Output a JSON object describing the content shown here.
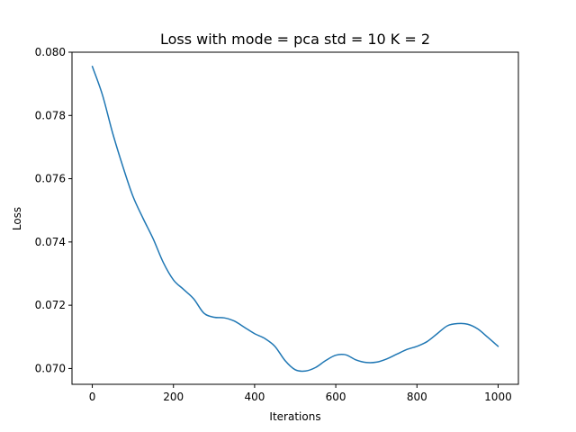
{
  "chart_data": {
    "type": "line",
    "title": "Loss with mode = pca std = 10 K = 2",
    "xlabel": "Iterations",
    "ylabel": "Loss",
    "xlim": [
      -50,
      1050
    ],
    "ylim": [
      0.0695,
      0.08
    ],
    "xticks": [
      0,
      200,
      400,
      600,
      800,
      1000
    ],
    "xtick_labels": [
      "0",
      "200",
      "400",
      "600",
      "800",
      "1000"
    ],
    "yticks": [
      0.07,
      0.072,
      0.074,
      0.076,
      0.078,
      0.08
    ],
    "ytick_labels": [
      "0.070",
      "0.072",
      "0.074",
      "0.076",
      "0.078",
      "0.080"
    ],
    "grid": false,
    "series": [
      {
        "color": "#1f77b4",
        "x": [
          0,
          25,
          50,
          75,
          100,
          125,
          150,
          175,
          200,
          225,
          250,
          275,
          300,
          325,
          350,
          375,
          400,
          425,
          450,
          475,
          500,
          525,
          550,
          575,
          600,
          625,
          650,
          675,
          700,
          725,
          750,
          775,
          800,
          825,
          850,
          875,
          900,
          925,
          950,
          975,
          1000
        ],
        "y": [
          0.07955,
          0.07865,
          0.07745,
          0.0764,
          0.07545,
          0.07475,
          0.0741,
          0.07335,
          0.0728,
          0.0725,
          0.0722,
          0.07175,
          0.07162,
          0.0716,
          0.0715,
          0.0713,
          0.0711,
          0.07095,
          0.0707,
          0.07025,
          0.06996,
          0.06992,
          0.07003,
          0.07025,
          0.07042,
          0.07043,
          0.07027,
          0.07019,
          0.0702,
          0.0703,
          0.07045,
          0.0706,
          0.0707,
          0.07085,
          0.0711,
          0.07135,
          0.07142,
          0.0714,
          0.07125,
          0.07098,
          0.0707
        ]
      }
    ]
  }
}
